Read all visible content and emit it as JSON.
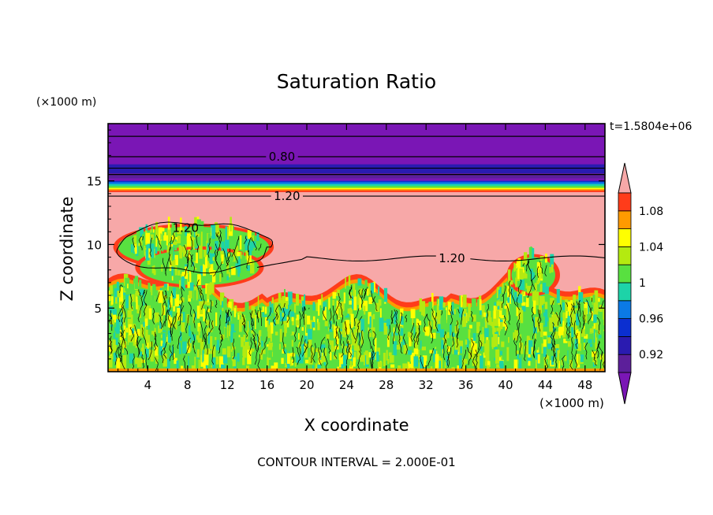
{
  "chart_data": {
    "type": "heatmap",
    "title": "Saturation Ratio",
    "xlabel": "X coordinate",
    "ylabel": "Z coordinate",
    "x_units": "(×1000 m)",
    "y_units": "(×1000 m)",
    "time_label": "t=1.5804e+06",
    "footer": "CONTOUR INTERVAL = 2.000E-01",
    "xlim": [
      0,
      50
    ],
    "ylim": [
      0,
      19.5
    ],
    "x_ticks": [
      4,
      8,
      12,
      16,
      20,
      24,
      28,
      32,
      36,
      40,
      44,
      48
    ],
    "y_ticks": [
      5,
      10,
      15
    ],
    "contour_labels": [
      {
        "text": "0.80",
        "x": 17.5,
        "z": 16.9
      },
      {
        "text": "1.20",
        "x": 18.0,
        "z": 13.8
      },
      {
        "text": "1.20",
        "x": 7.8,
        "z": 11.3
      },
      {
        "text": "1.20",
        "x": 34.6,
        "z": 8.9
      }
    ],
    "colorbar": {
      "levels": [
        0.9,
        0.92,
        0.94,
        0.96,
        0.98,
        1.0,
        1.02,
        1.04,
        1.06,
        1.08,
        1.1
      ],
      "tick_labels": [
        "0.92",
        "0.96",
        "1",
        "1.04",
        "1.08"
      ],
      "tick_values": [
        0.92,
        0.96,
        1.0,
        1.04,
        1.08
      ],
      "colors": [
        "#5c1f9a",
        "#2a1bb0",
        "#0b2fd0",
        "#0b7ae6",
        "#1dd3a8",
        "#58e040",
        "#b4ea10",
        "#ffff00",
        "#ff9a00",
        "#ff3c1a"
      ],
      "under_color": "#7a16b5",
      "over_color": "#f7a8a8"
    },
    "layers": {
      "upper_dry_value": 0.8,
      "moist_layer_value": 1.2,
      "boundary_layer_value": 1.0,
      "boundary_layer_top_km": 5.5,
      "moist_layer_top_km": 14.2
    }
  }
}
